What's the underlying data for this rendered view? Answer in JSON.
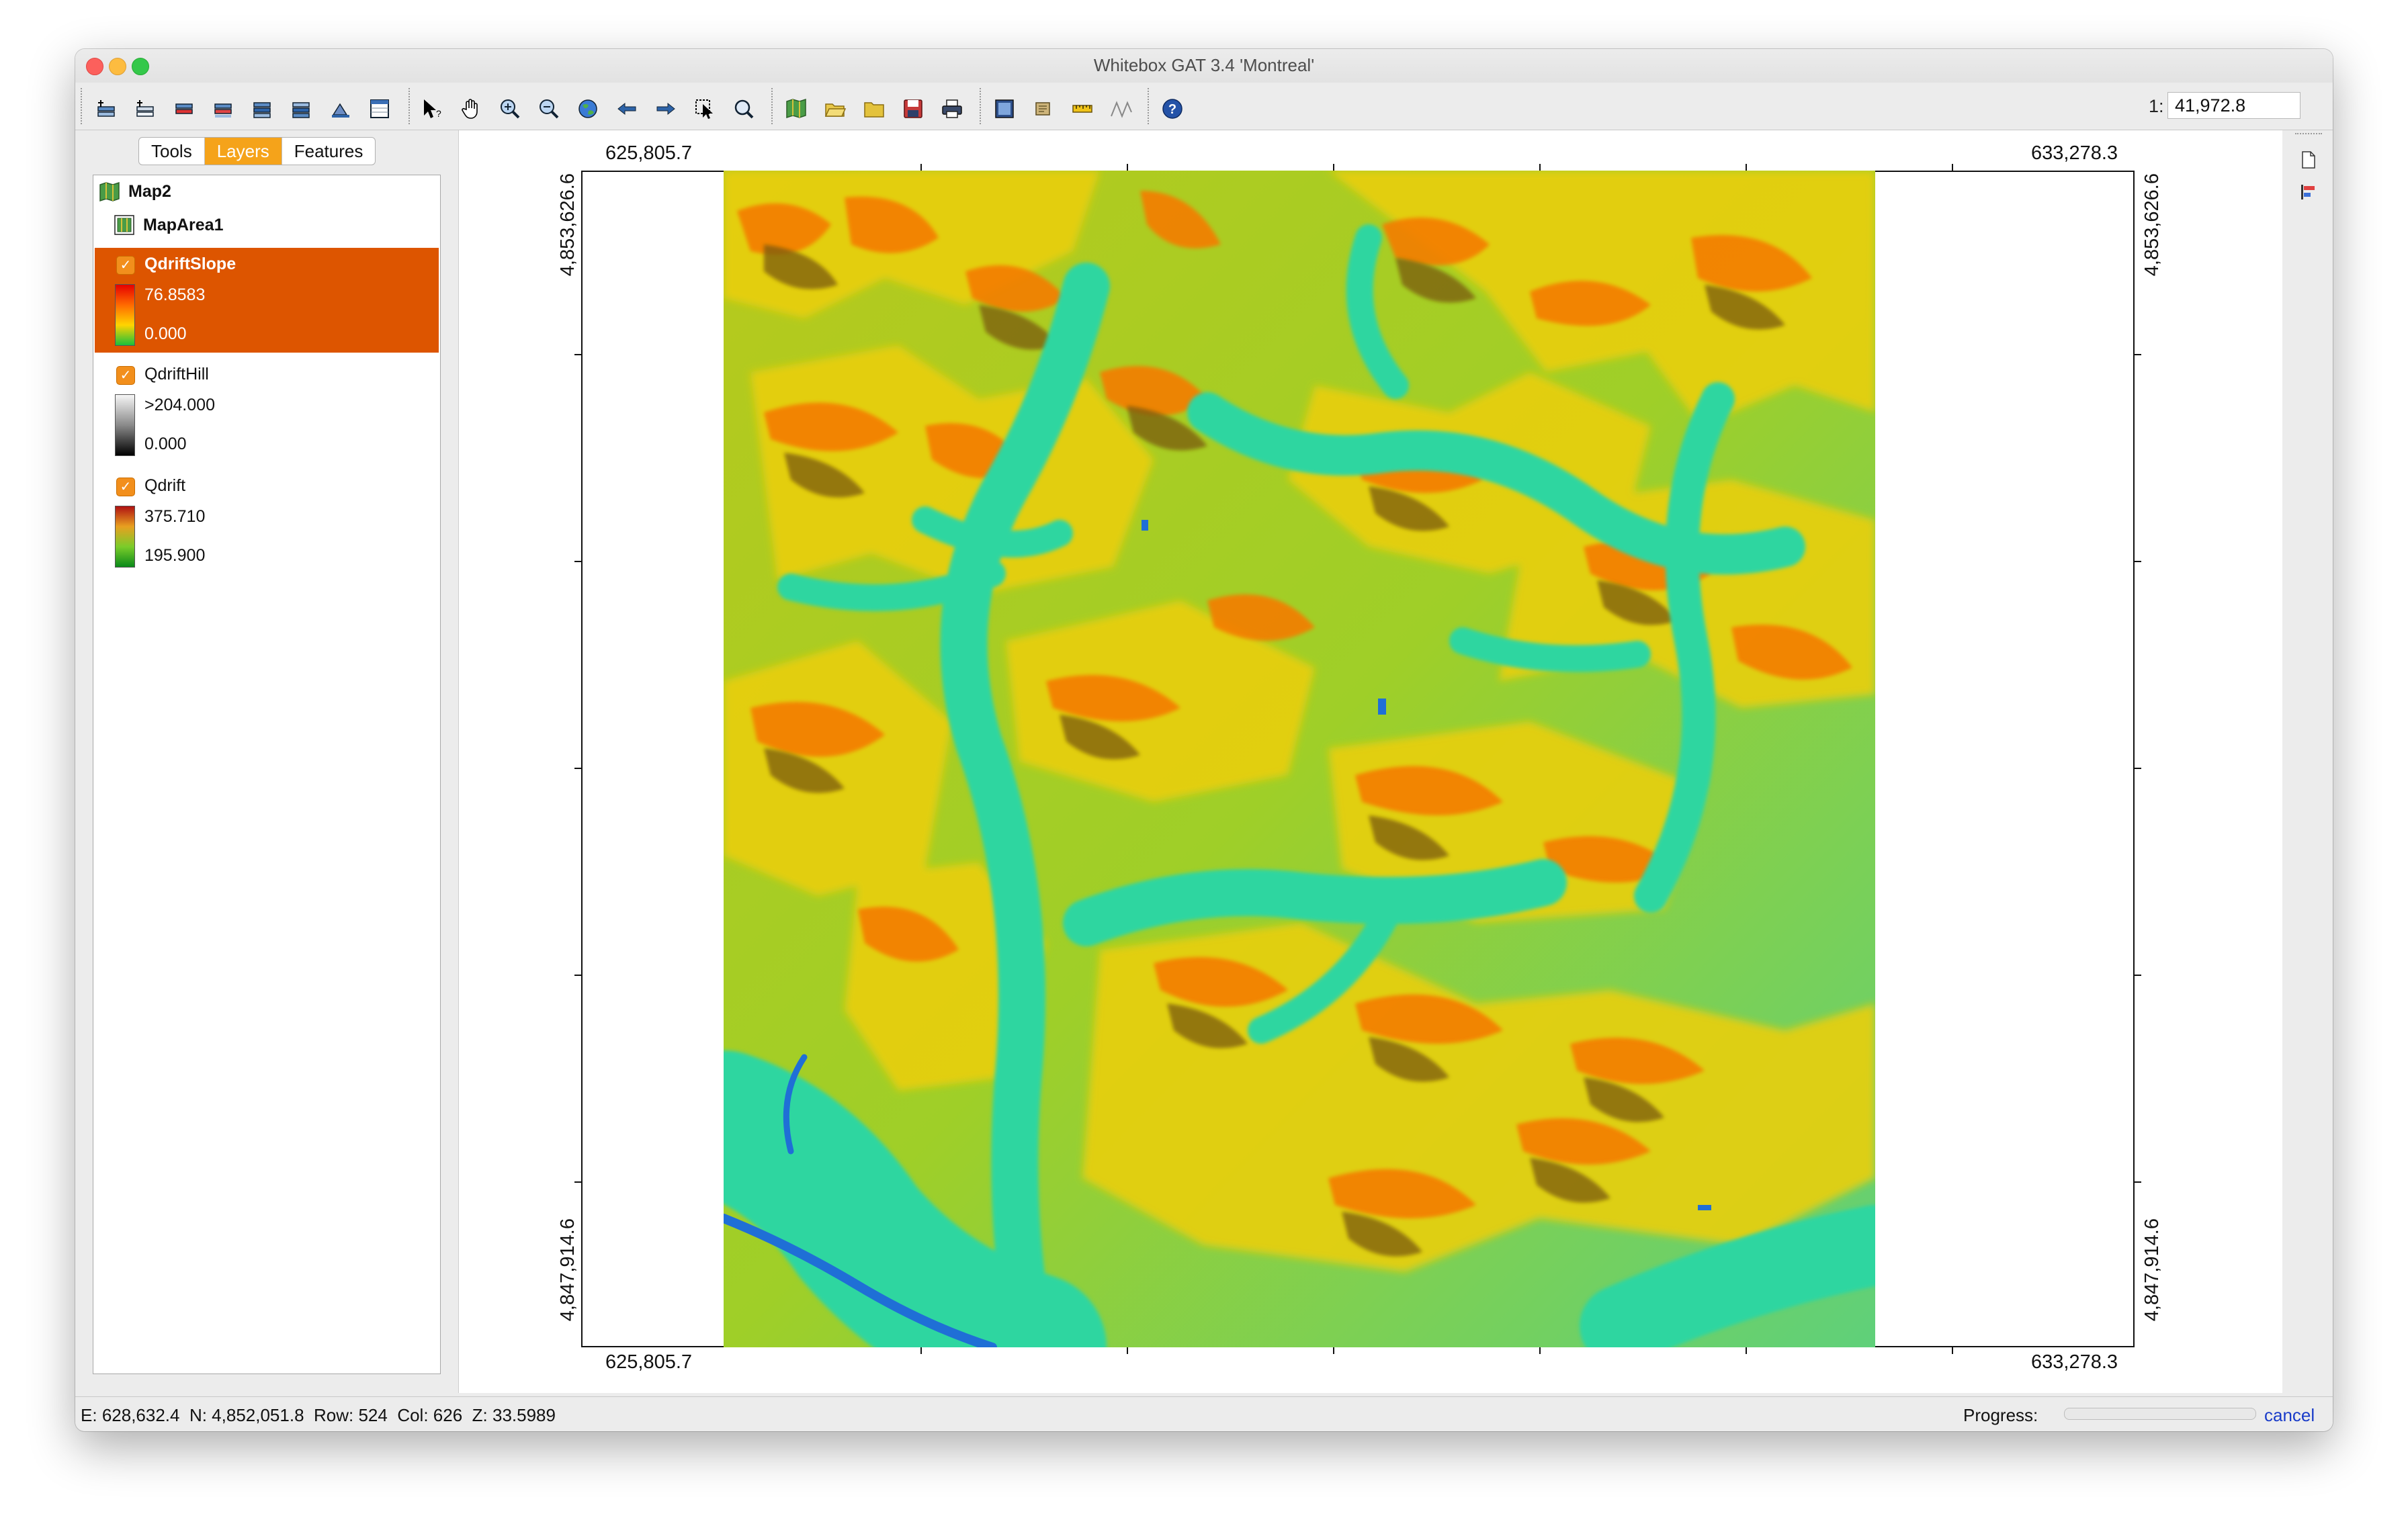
{
  "window": {
    "title": "Whitebox GAT 3.4 'Montreal'"
  },
  "toolbar": {
    "scale_prefix": "1:",
    "scale_value": "41,972.8",
    "icons": [
      "open-layer-icon",
      "new-layer-icon",
      "remove-layer-icon",
      "layer-properties-icon",
      "raise-layer-icon",
      "lower-layer-icon",
      "refresh-icon",
      "attribute-table-icon",
      "select-cursor-icon",
      "pan-hand-icon",
      "zoom-in-icon",
      "zoom-out-icon",
      "full-extent-globe-icon",
      "previous-extent-icon",
      "next-extent-icon",
      "select-feature-icon",
      "zoom-to-selection-icon",
      "new-map-icon",
      "open-map-icon",
      "open-folder-icon",
      "save-map-icon",
      "print-icon",
      "layout-icon",
      "scroll-icon",
      "measure-icon",
      "profile-icon",
      "help-icon"
    ]
  },
  "left_panel": {
    "tabs": [
      "Tools",
      "Layers",
      "Features"
    ],
    "active_tab": "Layers",
    "map_name": "Map2",
    "map_area_name": "MapArea1",
    "layers": [
      {
        "name": "QdriftSlope",
        "checked": true,
        "selected": true,
        "max": "76.8583",
        "min": "0.000",
        "palette": "red-yellow-green"
      },
      {
        "name": "QdriftHill",
        "checked": true,
        "selected": false,
        "max": ">204.000",
        "min": "0.000",
        "palette": "grey-scale"
      },
      {
        "name": "Qdrift",
        "checked": true,
        "selected": false,
        "max": "375.710",
        "min": "195.900",
        "palette": "red-green"
      }
    ]
  },
  "map": {
    "x_min": "625,805.7",
    "x_max": "633,278.3",
    "y_max": "4,853,626.6",
    "y_min": "4,847,914.6"
  },
  "status": {
    "easting_label": "E:",
    "easting": "628,632.4",
    "northing_label": "N:",
    "northing": "4,852,051.8",
    "row_label": "Row:",
    "row": "524",
    "col_label": "Col:",
    "col": "626",
    "z_label": "Z:",
    "z": "33.5989",
    "progress_label": "Progress:",
    "progress": 0,
    "cancel_label": "cancel"
  },
  "colors": {
    "selected_layer": "#dd5500",
    "active_tab": "#f5a31a",
    "checkbox": "#f28f1c",
    "slope_high": "#e33b00",
    "slope_mid": "#f6d400",
    "slope_low": "#21d4a9"
  }
}
